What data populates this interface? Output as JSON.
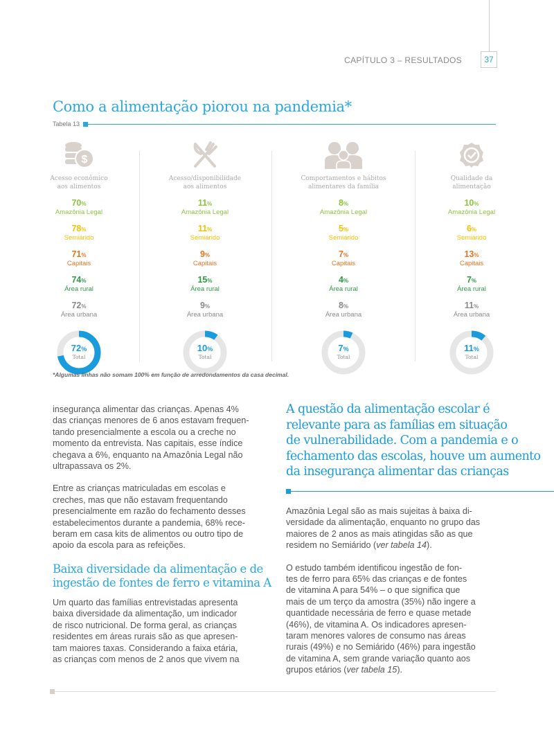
{
  "header": {
    "chapter": "CAPÍTULO 3 – RESULTADOS",
    "page": "37"
  },
  "title": "Como a alimentação piorou na pandemia*",
  "table_label": "Tabela 13",
  "colors": {
    "amazonia": "#8cc43f",
    "semiarido": "#f5c000",
    "capitais": "#e8731f",
    "rural": "#2e9a46",
    "urbana": "#8a8a8a",
    "accent": "#1a9bdc"
  },
  "regions": [
    "Amazônia Legal",
    "Semiárido",
    "Capitais",
    "Área rural",
    "Área urbana"
  ],
  "columns": [
    {
      "icon": "coins-dollar-icon",
      "label": [
        "Acesso econômico",
        "aos alimentos"
      ],
      "values": [
        "70",
        "78",
        "71",
        "74",
        "72"
      ],
      "total": 72
    },
    {
      "icon": "fork-knife-icon",
      "label": [
        "Acesso/disponibilidade",
        "aos alimentos"
      ],
      "values": [
        "11",
        "11",
        "9",
        "15",
        "9"
      ],
      "total": 10
    },
    {
      "icon": "family-icon",
      "label": [
        "Comportamentos e hábitos",
        "alimentares da família"
      ],
      "values": [
        "8",
        "5",
        "7",
        "4",
        "8"
      ],
      "total": 7
    },
    {
      "icon": "quality-badge-icon",
      "label": [
        "Qualidade da",
        "alimentação"
      ],
      "values": [
        "10",
        "6",
        "13",
        "7",
        "11"
      ],
      "total": 11
    }
  ],
  "pct": "%",
  "total_label": "Total",
  "footnote": "*Algumas linhas não somam 100% em função de arredondamentos da casa decimal.",
  "left_paras": [
    [
      "insegurança alimentar das crianças. Apenas 4%",
      "das crianças menores de 6 anos estavam frequen-",
      "tando presencialmente a escola ou a creche no",
      "momento da entrevista. Nas capitais, esse índice",
      "chegava a 6%, enquanto na Amazônia Legal não",
      "ultrapassava os 2%."
    ],
    [
      "Entre as crianças matriculadas em escolas e",
      "creches, mas que não estavam frequentando",
      "presencialmente em razão do fechamento desses",
      "estabelecimentos durante a pandemia, 68% rece-",
      "beram em casa kits de alimentos ou outro tipo de",
      "apoio da escola para as refeições."
    ]
  ],
  "subheading": [
    "Baixa diversidade da alimentação e de",
    "ingestão de fontes de ferro e vitamina A"
  ],
  "left_para3": [
    "Um quarto das famílias entrevistadas apresenta",
    "baixa diversidade da alimentação, um indicador",
    "de risco nutricional. De forma geral, as crianças",
    "residentes em áreas rurais são as que apresen-",
    "tam maiores taxas. Considerando a faixa etária,",
    "as crianças com menos de 2 anos que vivem na"
  ],
  "quote": [
    "A questão da alimentação escolar é",
    "relevante para as famílias em situação",
    "de vulnerabilidade. Com a pandemia e o",
    "fechamento das escolas, houve um aumento",
    "da insegurança alimentar das crianças"
  ],
  "right_para1": [
    "Amazônia Legal são as mais sujeitas à baixa di-",
    "versidade da alimentação, enquanto no grupo das",
    "maiores de 2 anos as mais atingidas são as que",
    "residem no Semiárido (",
    "ver tabela 14",
    ")."
  ],
  "right_para2": [
    "O estudo também identificou ingestão de fon-",
    "tes de ferro para 65% das crianças e de fontes",
    "de vitamina A para 54% – o que significa que",
    "mais de um terço da amostra (35%) não ingere a",
    "quantidade necessária de ferro e quase metade",
    "(46%), de vitamina A. Os indicadores apresen-",
    "taram menores valores de consumo nas áreas",
    "rurais (49%) e no Semiárido (46%) para ingestão",
    "de vitamina A, sem grande variação quanto aos",
    "grupos etários (",
    "ver tabela 15",
    ")."
  ]
}
